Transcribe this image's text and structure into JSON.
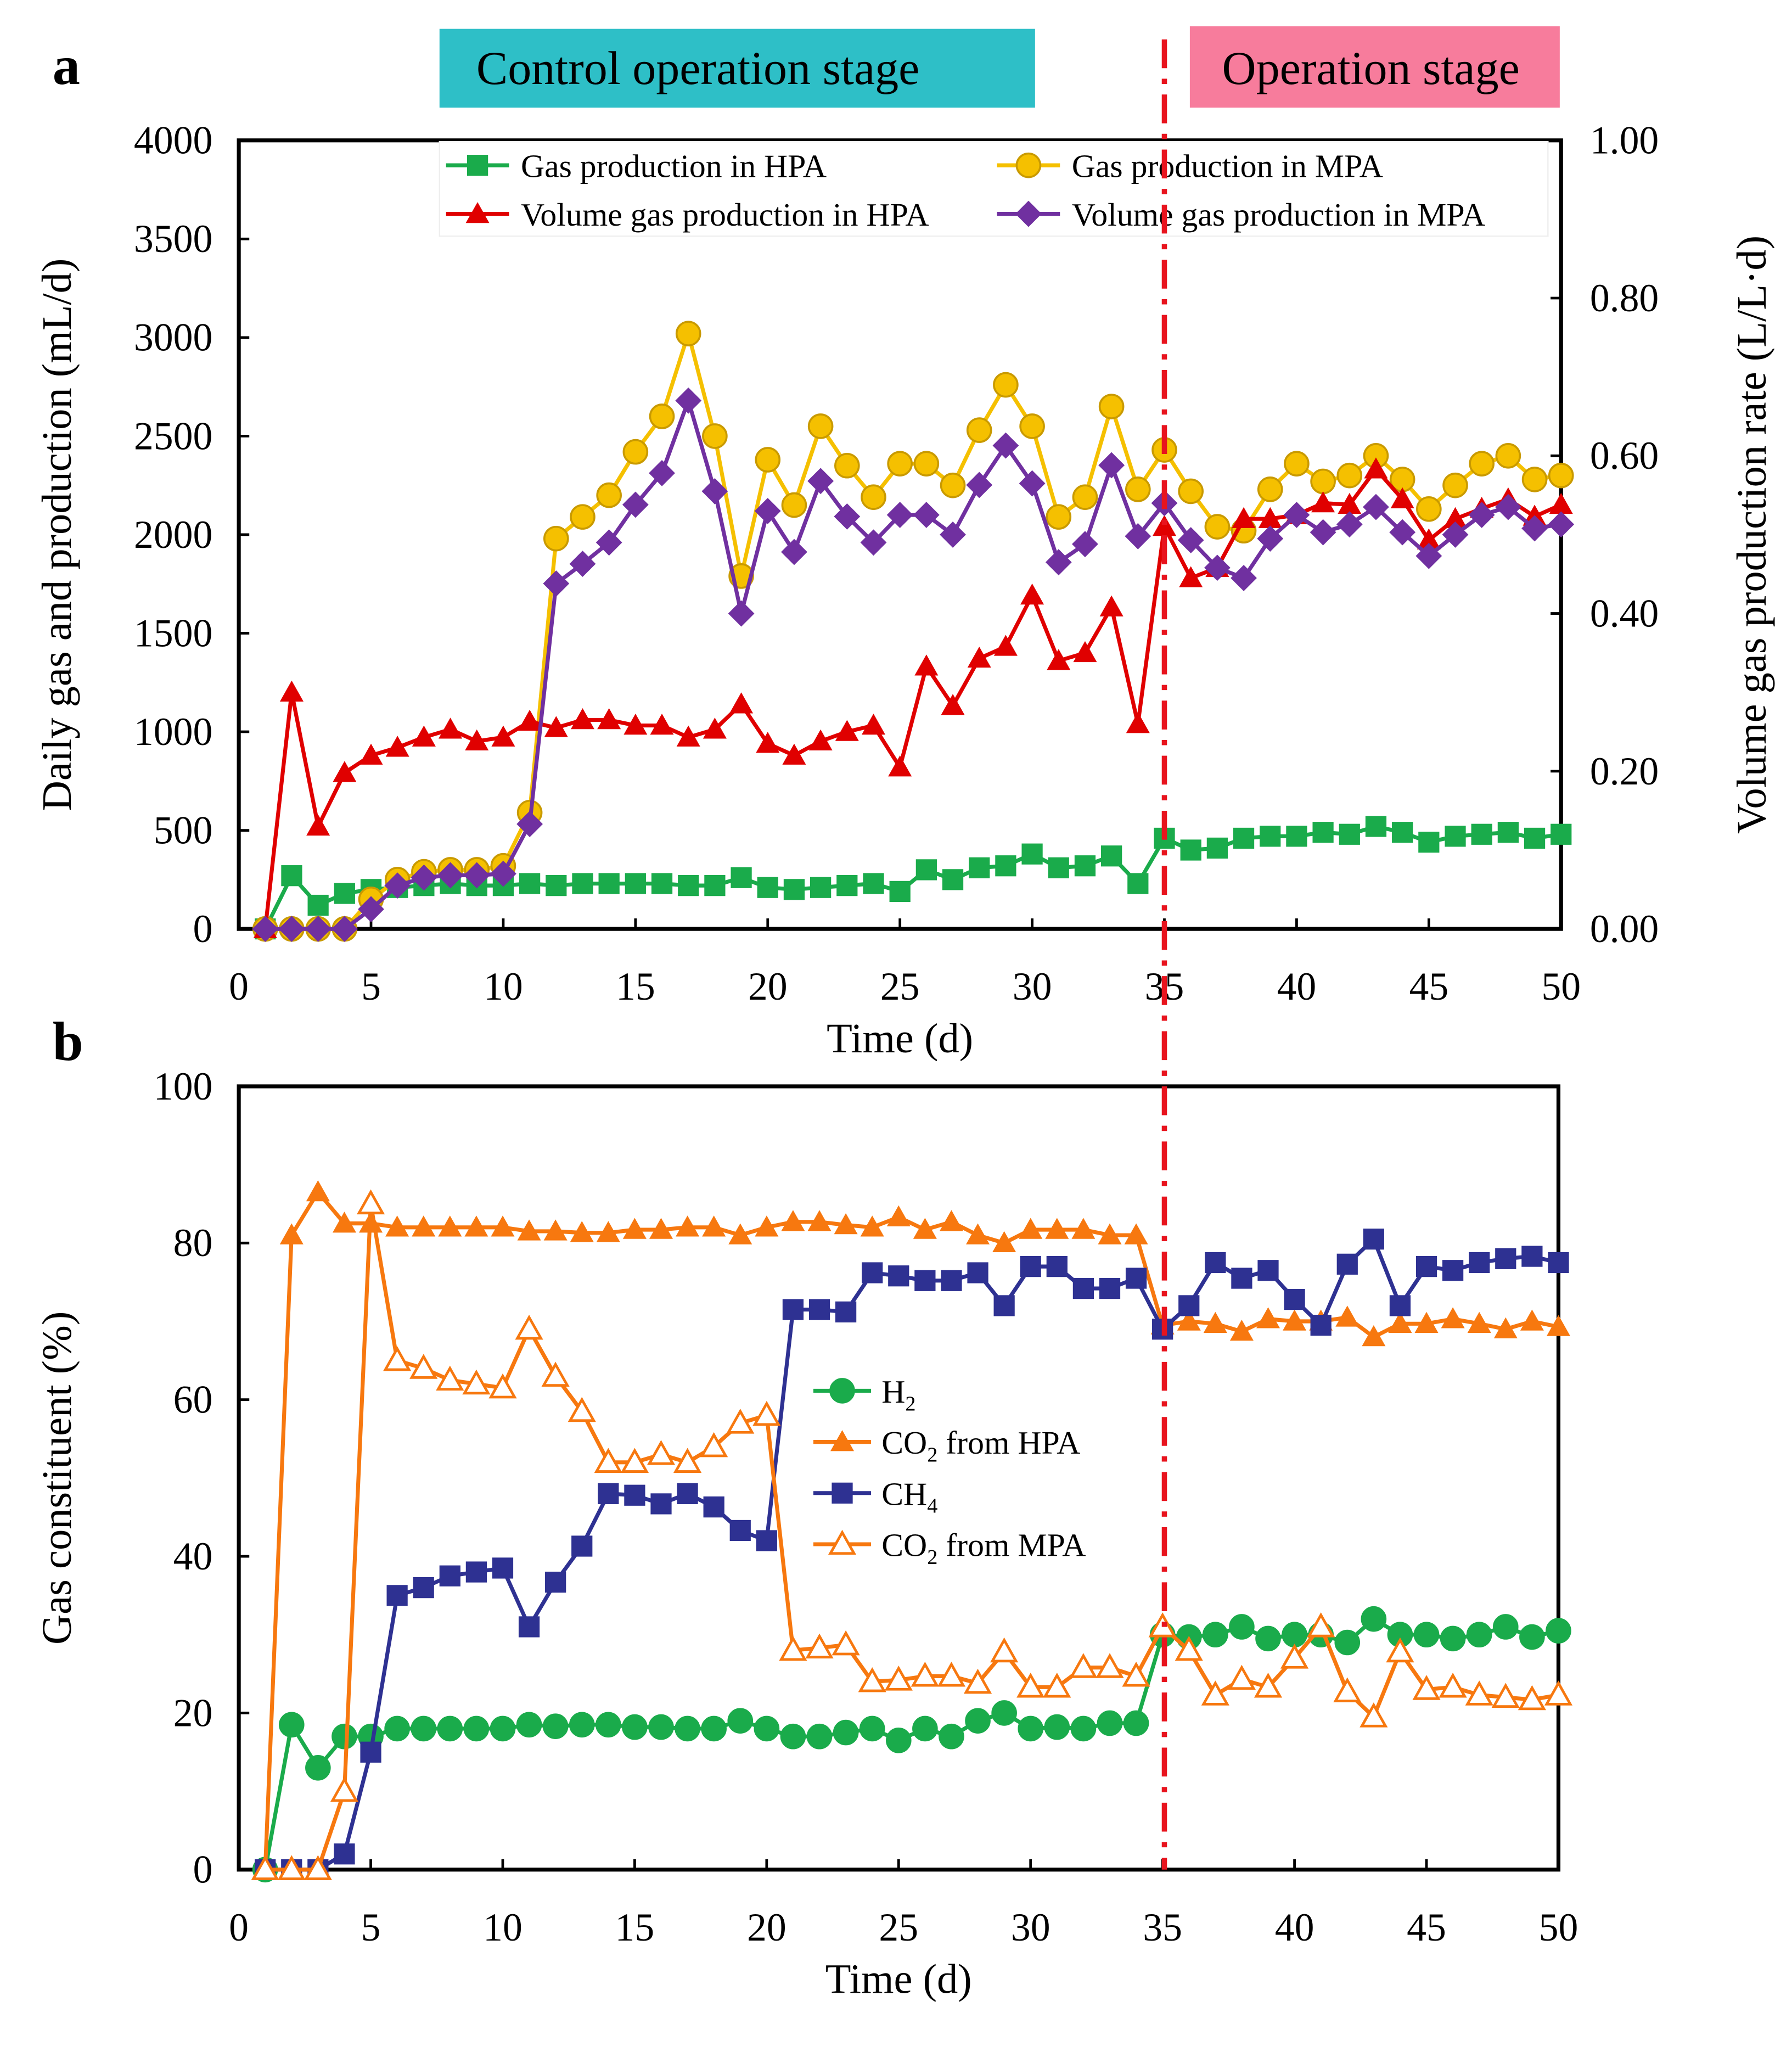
{
  "banners": {
    "control": "Control operation stage",
    "operation": "Operation stage",
    "control_color": "#2ebfc7",
    "operation_color": "#f77c9c"
  },
  "separator": {
    "day": 35,
    "color": "#e8141e"
  },
  "chart_data": [
    {
      "panel": "a",
      "type": "line",
      "xlabel": "Time (d)",
      "ylabel": "Daily gas and production (mL/d)",
      "y2label": "Volume gas production rate (L/L·d)",
      "xlim": [
        0,
        50
      ],
      "ylim": [
        0,
        4000
      ],
      "y2lim": [
        0,
        1.0
      ],
      "xticks": [
        "0",
        "5",
        "10",
        "15",
        "20",
        "25",
        "30",
        "35",
        "40",
        "45",
        "50"
      ],
      "yticks": [
        "0",
        "500",
        "1000",
        "1500",
        "2000",
        "2500",
        "3000",
        "3500",
        "4000"
      ],
      "y2ticks": [
        "0.00",
        "0.20",
        "0.40",
        "0.60",
        "0.80",
        "1.00"
      ],
      "legend_position": "top",
      "x": [
        1,
        2,
        3,
        4,
        5,
        6,
        7,
        8,
        9,
        10,
        11,
        12,
        13,
        14,
        15,
        16,
        17,
        18,
        19,
        20,
        21,
        22,
        23,
        24,
        25,
        26,
        27,
        28,
        29,
        30,
        31,
        32,
        33,
        34,
        35,
        36,
        37,
        38,
        39,
        40,
        41,
        42,
        43,
        44,
        45,
        46,
        47,
        48,
        49,
        50
      ],
      "series": [
        {
          "name": "Gas production in HPA",
          "axis": "left",
          "marker": "square",
          "color": "#1aab4b",
          "values": [
            0,
            270,
            120,
            180,
            200,
            210,
            220,
            230,
            220,
            220,
            230,
            220,
            230,
            230,
            230,
            230,
            220,
            220,
            260,
            210,
            200,
            210,
            220,
            230,
            190,
            300,
            250,
            310,
            320,
            380,
            310,
            320,
            370,
            230,
            460,
            400,
            410,
            460,
            470,
            470,
            490,
            480,
            520,
            490,
            440,
            470,
            480,
            490,
            460,
            480
          ]
        },
        {
          "name": "Gas production in MPA",
          "axis": "left",
          "marker": "circle",
          "color": "#f5c000",
          "values": [
            0,
            0,
            0,
            0,
            150,
            250,
            290,
            300,
            300,
            320,
            590,
            1980,
            2090,
            2200,
            2420,
            2600,
            3020,
            2500,
            1790,
            2380,
            2150,
            2550,
            2350,
            2190,
            2360,
            2360,
            2250,
            2530,
            2760,
            2550,
            2090,
            2190,
            2650,
            2230,
            2430,
            2220,
            2040,
            2020,
            2230,
            2360,
            2270,
            2300,
            2400,
            2280,
            2130,
            2250,
            2360,
            2400,
            2280,
            2300
          ]
        },
        {
          "name": "Volume gas production in HPA",
          "axis": "right",
          "marker": "triangle",
          "color": "#e00000",
          "values": [
            0,
            0.3,
            0.13,
            0.198,
            0.22,
            0.23,
            0.243,
            0.253,
            0.238,
            0.243,
            0.263,
            0.255,
            0.265,
            0.265,
            0.258,
            0.258,
            0.243,
            0.253,
            0.285,
            0.235,
            0.22,
            0.238,
            0.25,
            0.258,
            0.205,
            0.333,
            0.283,
            0.343,
            0.358,
            0.423,
            0.34,
            0.35,
            0.408,
            0.26,
            0.51,
            0.445,
            0.458,
            0.52,
            0.52,
            0.525,
            0.54,
            0.538,
            0.583,
            0.545,
            0.493,
            0.52,
            0.533,
            0.545,
            0.523,
            0.538
          ]
        },
        {
          "name": "Volume gas production in MPA",
          "axis": "right",
          "marker": "diamond",
          "color": "#7030a0",
          "values": [
            0,
            0,
            0,
            0,
            0.025,
            0.055,
            0.065,
            0.068,
            0.068,
            0.07,
            0.133,
            0.438,
            0.463,
            0.49,
            0.538,
            0.578,
            0.67,
            0.555,
            0.4,
            0.53,
            0.478,
            0.568,
            0.523,
            0.49,
            0.525,
            0.525,
            0.5,
            0.563,
            0.613,
            0.565,
            0.465,
            0.488,
            0.588,
            0.498,
            0.54,
            0.493,
            0.458,
            0.445,
            0.495,
            0.525,
            0.503,
            0.513,
            0.535,
            0.503,
            0.473,
            0.5,
            0.525,
            0.535,
            0.508,
            0.513
          ]
        }
      ]
    },
    {
      "panel": "b",
      "type": "line",
      "xlabel": "Time (d)",
      "ylabel": "Gas constituent (%)",
      "xlim": [
        0,
        50
      ],
      "ylim": [
        0,
        100
      ],
      "xticks": [
        "0",
        "5",
        "10",
        "15",
        "20",
        "25",
        "30",
        "35",
        "40",
        "45",
        "50"
      ],
      "yticks": [
        "0",
        "20",
        "40",
        "60",
        "80",
        "100"
      ],
      "legend_position": "center",
      "x": [
        1,
        2,
        3,
        4,
        5,
        6,
        7,
        8,
        9,
        10,
        11,
        12,
        13,
        14,
        15,
        16,
        17,
        18,
        19,
        20,
        21,
        22,
        23,
        24,
        25,
        26,
        27,
        28,
        29,
        30,
        31,
        32,
        33,
        34,
        35,
        36,
        37,
        38,
        39,
        40,
        41,
        42,
        43,
        44,
        45,
        46,
        47,
        48,
        49,
        50
      ],
      "series": [
        {
          "name": "H",
          "sub": "2",
          "suffix": "",
          "marker": "circle",
          "color": "#1aab4b",
          "values": [
            0,
            18.5,
            13,
            17,
            17,
            18,
            18,
            18,
            18,
            18,
            18.5,
            18.3,
            18.5,
            18.5,
            18.2,
            18.2,
            18,
            18,
            19,
            18,
            17,
            17,
            17.5,
            18,
            16.5,
            18,
            17,
            19,
            20,
            18,
            18.2,
            18,
            18.7,
            18.7,
            30,
            29.7,
            30,
            31,
            29.5,
            30,
            30,
            29,
            32,
            30,
            30,
            29.5,
            30,
            31,
            29.7,
            30.5
          ]
        },
        {
          "name": "CO",
          "sub": "2",
          "suffix": " from HPA",
          "marker": "triangle",
          "color": "#f7780f",
          "values": [
            0,
            81,
            86.5,
            82.5,
            82.5,
            82,
            82,
            82,
            82,
            82,
            81.5,
            81.5,
            81.3,
            81.3,
            81.7,
            81.7,
            82,
            82,
            81,
            82,
            82.7,
            82.7,
            82.3,
            82,
            83.3,
            81.7,
            82.7,
            81,
            80,
            81.7,
            81.7,
            81.7,
            81,
            81,
            69.5,
            70,
            69.7,
            68.7,
            70.3,
            70,
            70,
            70.5,
            68,
            69.7,
            69.7,
            70.3,
            69.7,
            69,
            70,
            69.3
          ]
        },
        {
          "name": "CH",
          "sub": "4",
          "suffix": "",
          "marker": "square",
          "color": "#2e3192",
          "values": [
            0,
            0,
            0,
            2,
            15,
            35,
            36,
            37.5,
            38,
            38.5,
            31,
            36.7,
            41.3,
            48,
            47.8,
            46.7,
            48,
            46.3,
            43.3,
            42,
            71.5,
            71.5,
            71.2,
            76.2,
            75.8,
            75.2,
            75.2,
            76.2,
            72,
            77,
            77,
            74.2,
            74.2,
            75.5,
            69,
            72,
            77.5,
            75.5,
            76.5,
            72.8,
            69.5,
            77.3,
            80.5,
            72,
            77,
            76.5,
            77.5,
            78,
            78.3,
            77.5
          ]
        },
        {
          "name": "CO",
          "sub": "2",
          "suffix": " from MPA",
          "marker": "triangle-open",
          "color": "#f7780f",
          "values": [
            0,
            0,
            0,
            10,
            85,
            65,
            64,
            62.5,
            62,
            61.5,
            69,
            63,
            58.5,
            52,
            52,
            53,
            52,
            54,
            57,
            58,
            28,
            28.3,
            28.7,
            24,
            24.2,
            24.7,
            24.7,
            23.8,
            27.8,
            23.3,
            23.3,
            25.8,
            25.8,
            24.7,
            31,
            28,
            22.3,
            24.3,
            23.3,
            27,
            31,
            22.7,
            19.5,
            27.8,
            23,
            23.3,
            22.3,
            22,
            21.7,
            22.3
          ]
        }
      ]
    }
  ],
  "panel_labels": [
    "a",
    "b"
  ]
}
